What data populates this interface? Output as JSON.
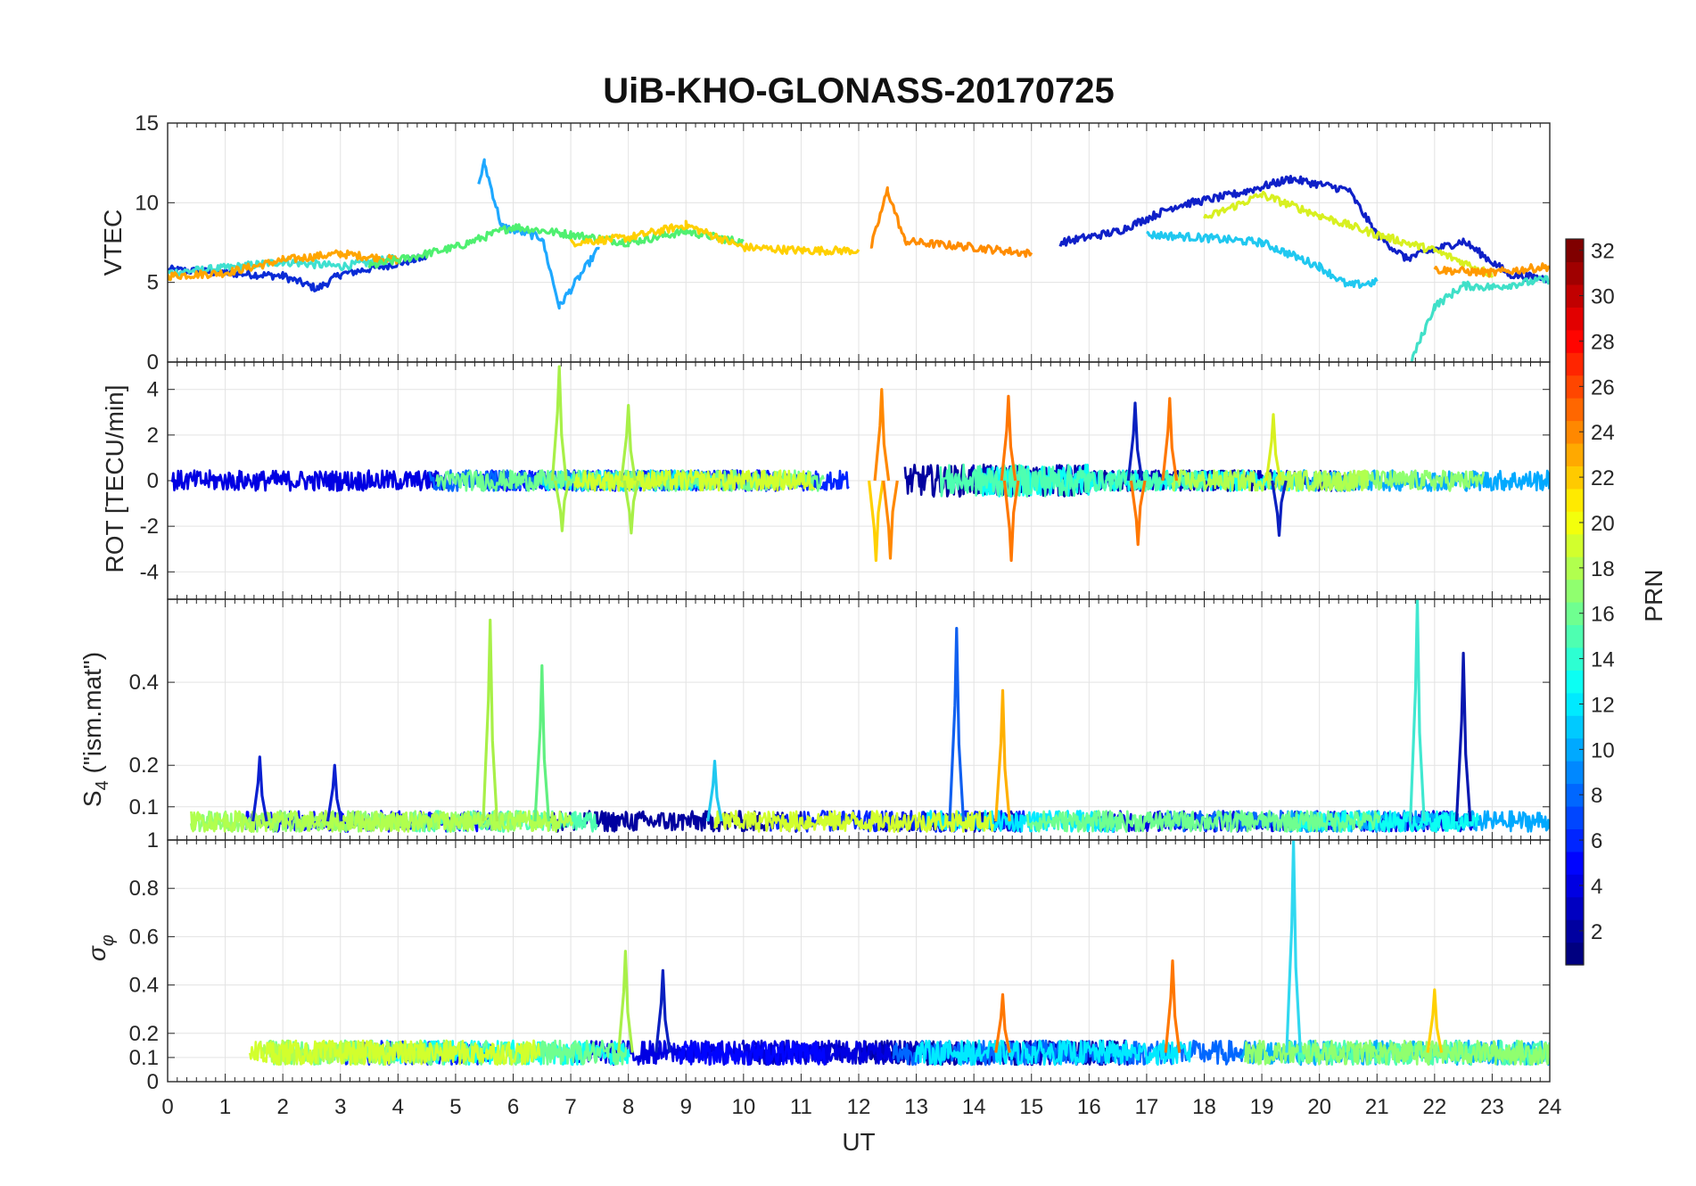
{
  "title": "UiB-KHO-GLONASS-20170725",
  "chart_data": [
    {
      "type": "line",
      "panel": "vtec",
      "ylabel": "VTEC",
      "ylim": [
        0,
        15
      ],
      "yticks": [
        0,
        5,
        10,
        15
      ],
      "xlim": [
        0,
        24
      ],
      "grid": true,
      "series_samples": [
        {
          "color": "#0a2bd6",
          "x": [
            0,
            1,
            2,
            2.6,
            3,
            4,
            4.5
          ],
          "y": [
            5.8,
            5.6,
            5.4,
            4.6,
            5.5,
            6.2,
            6.6
          ]
        },
        {
          "color": "#3fe0d0",
          "x": [
            0,
            1,
            2,
            3,
            4
          ],
          "y": [
            5.6,
            5.9,
            6.3,
            6.0,
            6.5
          ]
        },
        {
          "color": "#ffa500",
          "x": [
            0,
            1,
            2,
            3,
            4
          ],
          "y": [
            5.4,
            5.6,
            6.4,
            6.8,
            6.4
          ]
        },
        {
          "color": "#1ea8ff",
          "x": [
            5.4,
            5.5,
            5.8,
            6.5,
            6.8,
            7.5
          ],
          "y": [
            11.2,
            12.5,
            8.5,
            7.8,
            3.5,
            7.2
          ]
        },
        {
          "color": "#4ff070",
          "x": [
            3.5,
            5,
            6,
            7,
            8,
            9,
            10
          ],
          "y": [
            6.0,
            7.2,
            8.5,
            8.0,
            7.5,
            8.2,
            7.5
          ]
        },
        {
          "color": "#ffd000",
          "x": [
            7,
            8,
            9,
            10,
            11,
            12
          ],
          "y": [
            7.5,
            7.8,
            8.6,
            7.2,
            7.0,
            7.0
          ]
        },
        {
          "color": "#ff8c00",
          "x": [
            12.2,
            12.5,
            12.8,
            13,
            14,
            15
          ],
          "y": [
            7.0,
            10.8,
            7.6,
            7.5,
            7.2,
            6.8
          ]
        },
        {
          "color": "#0f20c8",
          "x": [
            15.5,
            16.5,
            17.5,
            18.5,
            19.5,
            20.5,
            21,
            21.5,
            22.5,
            23.3,
            24
          ],
          "y": [
            7.5,
            8.2,
            9.8,
            10.5,
            11.5,
            10.8,
            8.0,
            6.5,
            7.6,
            5.5,
            5.2
          ]
        },
        {
          "color": "#20c8f0",
          "x": [
            17,
            18,
            19,
            20,
            20.5,
            21
          ],
          "y": [
            8.0,
            7.8,
            7.5,
            6.0,
            4.8,
            5.0
          ]
        },
        {
          "color": "#40e0c8",
          "x": [
            21.6,
            22,
            22.5,
            23,
            24
          ],
          "y": [
            0.1,
            3.5,
            4.8,
            4.7,
            5.2
          ]
        },
        {
          "color": "#d8f020",
          "x": [
            18,
            19,
            20,
            21,
            22,
            23
          ],
          "y": [
            9.0,
            10.5,
            9.2,
            8.0,
            7.0,
            5.5
          ]
        },
        {
          "color": "#ff9900",
          "x": [
            22,
            23,
            24
          ],
          "y": [
            5.8,
            5.6,
            6.0
          ]
        }
      ]
    },
    {
      "type": "line",
      "panel": "rot",
      "ylabel": "ROT [TECU/min]",
      "ylim": [
        -5.2,
        5.2
      ],
      "yticks": [
        -4,
        -2,
        0,
        2,
        4
      ],
      "xlim": [
        0,
        24
      ],
      "grid": true,
      "spikes": [
        {
          "x": 6.8,
          "y": 5.0,
          "color": "#a8f048"
        },
        {
          "x": 6.85,
          "y": -2.2,
          "color": "#a8f048"
        },
        {
          "x": 8.0,
          "y": 3.3,
          "color": "#a8f048"
        },
        {
          "x": 8.05,
          "y": -2.3,
          "color": "#a8f048"
        },
        {
          "x": 12.4,
          "y": 4.0,
          "color": "#ff8800"
        },
        {
          "x": 12.3,
          "y": -3.5,
          "color": "#ffd000"
        },
        {
          "x": 12.55,
          "y": -3.4,
          "color": "#ff8800"
        },
        {
          "x": 14.6,
          "y": 3.7,
          "color": "#ff7700"
        },
        {
          "x": 14.65,
          "y": -3.5,
          "color": "#ff7700"
        },
        {
          "x": 16.8,
          "y": 3.4,
          "color": "#0a20c0"
        },
        {
          "x": 16.85,
          "y": -2.8,
          "color": "#ff7700"
        },
        {
          "x": 17.4,
          "y": 3.6,
          "color": "#ff7700"
        },
        {
          "x": 19.2,
          "y": 2.9,
          "color": "#d8f020"
        },
        {
          "x": 19.3,
          "y": -2.4,
          "color": "#0a20c0"
        }
      ]
    },
    {
      "type": "line",
      "panel": "s4",
      "ylabel": "S4 (\"ism.mat\")",
      "ylim": [
        0.02,
        0.6
      ],
      "yticks": [
        0.1,
        0.2,
        0.4
      ],
      "xlim": [
        0,
        24
      ],
      "grid": true,
      "spikes": [
        {
          "x": 1.6,
          "y": 0.22,
          "color": "#0a20d0"
        },
        {
          "x": 2.9,
          "y": 0.2,
          "color": "#0a20d0"
        },
        {
          "x": 5.6,
          "y": 0.55,
          "color": "#a8f048"
        },
        {
          "x": 6.5,
          "y": 0.44,
          "color": "#60f080"
        },
        {
          "x": 9.5,
          "y": 0.21,
          "color": "#20c8f0"
        },
        {
          "x": 13.7,
          "y": 0.53,
          "color": "#1060f0"
        },
        {
          "x": 14.5,
          "y": 0.38,
          "color": "#ffb000"
        },
        {
          "x": 21.7,
          "y": 0.6,
          "color": "#40e8d0"
        },
        {
          "x": 22.5,
          "y": 0.47,
          "color": "#0a18b0"
        }
      ]
    },
    {
      "type": "line",
      "panel": "sigma_phi",
      "ylabel": "σ_φ",
      "ylim": [
        0,
        1
      ],
      "yticks": [
        0,
        0.1,
        0.2,
        0.4,
        0.6,
        0.8,
        1
      ],
      "xlim": [
        0,
        24
      ],
      "xticks": [
        0,
        1,
        2,
        3,
        4,
        5,
        6,
        7,
        8,
        9,
        10,
        11,
        12,
        13,
        14,
        15,
        16,
        17,
        18,
        19,
        20,
        21,
        22,
        23,
        24
      ],
      "xlabel": "UT",
      "grid": true,
      "spikes": [
        {
          "x": 7.95,
          "y": 0.54,
          "color": "#a8f048"
        },
        {
          "x": 8.6,
          "y": 0.46,
          "color": "#0a20c0"
        },
        {
          "x": 14.5,
          "y": 0.36,
          "color": "#ff7700"
        },
        {
          "x": 17.45,
          "y": 0.5,
          "color": "#ff7700"
        },
        {
          "x": 19.55,
          "y": 1.0,
          "color": "#30d8f0"
        },
        {
          "x": 22.0,
          "y": 0.38,
          "color": "#ffd000"
        }
      ]
    }
  ],
  "colorbar": {
    "label": "PRN",
    "min": 1,
    "max": 32,
    "ticks": [
      "2",
      "4",
      "6",
      "8",
      "10",
      "12",
      "14",
      "16",
      "18",
      "20",
      "22",
      "24",
      "26",
      "28",
      "30",
      "32"
    ]
  }
}
